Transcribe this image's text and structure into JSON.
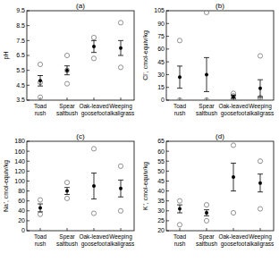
{
  "chart_data": [
    {
      "type": "dot",
      "title": "(a)",
      "y_label": "pH",
      "marker": "circle",
      "color": "#000000",
      "categories": [
        "Toad rush",
        "Spear saltbush",
        "Oak-leaved goosefoot",
        "Weeping alkaligrass"
      ],
      "values": [
        4.8,
        5.5,
        7.1,
        7.0
      ],
      "errors": [
        0.35,
        0.3,
        0.4,
        0.5
      ],
      "points": [
        [
          5.9,
          4.7,
          3.7
        ],
        [
          6.5,
          5.5,
          4.6
        ],
        [
          7.7,
          6.3
        ],
        [
          8.7,
          5.7
        ]
      ],
      "ylim": [
        3.5,
        9.5
      ],
      "yticks": [
        3.5,
        4.5,
        5.5,
        6.5,
        7.5,
        8.5,
        9.5
      ]
    },
    {
      "type": "dot",
      "title": "(b)",
      "y_label": "Cl⁻, cmol-equiv/kg",
      "marker": "circle",
      "color": "#000000",
      "categories": [
        "Toad rush",
        "Spear saltbush",
        "Oak-leaved goosefoot",
        "Weeping alkaligrass"
      ],
      "values": [
        27,
        30,
        4,
        14
      ],
      "errors": [
        13,
        20,
        2,
        10
      ],
      "points": [
        [
          70,
          0
        ],
        [
          103,
          0
        ],
        [
          8,
          1,
          5
        ],
        [
          52,
          3,
          1
        ]
      ],
      "ylim": [
        0,
        105
      ],
      "yticks": [
        0,
        15,
        30,
        45,
        60,
        75,
        90,
        105
      ]
    },
    {
      "type": "dot",
      "title": "(c)",
      "y_label": "Na⁺, cmol-equiv/kg",
      "marker": "circle",
      "color": "#000000",
      "categories": [
        "Toad rush",
        "Spear saltbush",
        "Oak-leaved goosefoot",
        "Weeping alkaligrass"
      ],
      "values": [
        46,
        80,
        90,
        85
      ],
      "errors": [
        8,
        7,
        26,
        17
      ],
      "points": [
        [
          62,
          33
        ],
        [
          97,
          65
        ],
        [
          165,
          35
        ],
        [
          130,
          40
        ]
      ],
      "ylim": [
        0,
        180
      ],
      "yticks": [
        0,
        20,
        40,
        60,
        80,
        100,
        120,
        140,
        160,
        180
      ]
    },
    {
      "type": "dot",
      "title": "(d)",
      "y_label": "K⁺, cmol-equiv/kg",
      "marker": "circle",
      "color": "#000000",
      "categories": [
        "Toad rush",
        "Spear saltbush",
        "Oak-leaved goosefoot",
        "Weeping alkaligrass"
      ],
      "values": [
        31,
        29,
        47,
        44
      ],
      "errors": [
        2,
        1.5,
        7,
        4.5
      ],
      "points": [
        [
          35,
          23
        ],
        [
          33,
          25
        ],
        [
          63,
          29
        ],
        [
          55,
          31
        ]
      ],
      "ylim": [
        20,
        65
      ],
      "yticks": [
        20,
        25,
        30,
        35,
        40,
        45,
        50,
        55,
        60,
        65
      ]
    }
  ]
}
